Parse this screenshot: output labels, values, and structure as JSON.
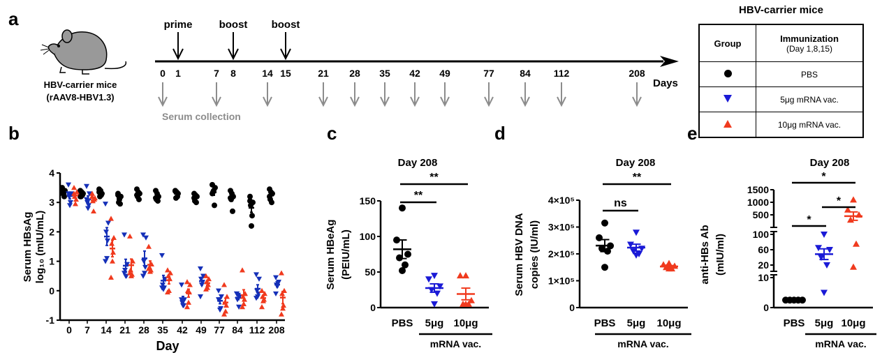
{
  "panel_labels": {
    "a": "a",
    "b": "b",
    "c": "c",
    "d": "d",
    "e": "e"
  },
  "colors": {
    "pbs": "#000000",
    "low": "#1a1ad6",
    "high": "#f03a1e",
    "panel_b_low": "#1530b8",
    "collection_arrow": "#8c8c8c"
  },
  "schedule": {
    "mouse_label": "HBV-carrier mice",
    "mouse_model": "(rAAV8-HBV1.3)",
    "immunizations": [
      {
        "label": "prime",
        "day": 1
      },
      {
        "label": "boost",
        "day": 8
      },
      {
        "label": "boost",
        "day": 15
      }
    ],
    "days": [
      "0",
      "1",
      "7",
      "8",
      "14",
      "15",
      "21",
      "28",
      "35",
      "42",
      "49",
      "77",
      "84",
      "112",
      "208"
    ],
    "collection_days": [
      "0",
      "7",
      "14",
      "21",
      "28",
      "35",
      "42",
      "49",
      "77",
      "84",
      "112",
      "208"
    ],
    "axis_label": "Days",
    "collection_label": "Serum collection"
  },
  "legend": {
    "title": "HBV-carrier mice",
    "col_group": "Group",
    "col_immunization": "Immunization",
    "col_immunization_sub": "(Day 1,8,15)",
    "rows": [
      {
        "marker": "circle",
        "label": "PBS"
      },
      {
        "marker": "triangle-down",
        "label": "5μg mRNA vac."
      },
      {
        "marker": "triangle-up",
        "label": "10μg mRNA vac."
      }
    ]
  },
  "chart_data": [
    {
      "id": "b",
      "type": "scatter",
      "xlabel": "Day",
      "ylabel": [
        "Serum HBsAg",
        "log₁₀ (mIU/mL)"
      ],
      "ylim": [
        -1,
        4
      ],
      "yticks": [
        "-1",
        "0",
        "1",
        "2",
        "3",
        "4"
      ],
      "categories": [
        "0",
        "7",
        "14",
        "21",
        "28",
        "35",
        "42",
        "49",
        "77",
        "84",
        "112",
        "208"
      ],
      "series": [
        {
          "group": "PBS",
          "marker": "circle",
          "values": [
            [
              3.5,
              3.4,
              3.3,
              3.2,
              3.3,
              3.45
            ],
            [
              3.4,
              3.3,
              3.2,
              3.25,
              3.35,
              3.2
            ],
            [
              3.45,
              3.3,
              3.2,
              3.25,
              3.4,
              3.35
            ],
            [
              3.3,
              3.2,
              3.0,
              2.95,
              3.1,
              3.25
            ],
            [
              3.45,
              3.3,
              3.2,
              3.1,
              3.35,
              3.25
            ],
            [
              3.4,
              3.2,
              3.1,
              3.05,
              3.3,
              3.15
            ],
            [
              3.4,
              3.3,
              3.15,
              3.2,
              3.35,
              3.38
            ],
            [
              3.3,
              3.2,
              3.05,
              3.0,
              3.25,
              3.15
            ],
            [
              3.6,
              3.5,
              3.35,
              2.9,
              3.4,
              3.3
            ],
            [
              3.4,
              3.2,
              3.1,
              2.7,
              3.3,
              3.15
            ],
            [
              3.2,
              3.0,
              2.9,
              2.55,
              2.2,
              3.05
            ],
            [
              3.45,
              3.3,
              3.1,
              3.0,
              3.35,
              3.2
            ]
          ]
        },
        {
          "group": "5μg",
          "marker": "triangle-down",
          "values": [
            [
              3.6,
              3.3,
              3.2,
              3.0,
              2.9,
              3.3
            ],
            [
              3.55,
              3.3,
              3.0,
              2.9,
              2.8,
              3.1
            ],
            [
              2.95,
              2.3,
              2.0,
              1.7,
              1.1,
              1.0
            ],
            [
              1.9,
              0.9,
              0.7,
              0.5,
              0.5,
              0.6
            ],
            [
              1.9,
              1.8,
              1.0,
              0.8,
              0.6,
              0.5
            ],
            [
              1.2,
              0.4,
              0.2,
              0.1,
              0.05,
              0.1
            ],
            [
              0.2,
              -0.3,
              -0.4,
              -0.5,
              -0.5,
              -0.3
            ],
            [
              0.75,
              0.5,
              0.4,
              0.3,
              0.2,
              -0.2
            ],
            [
              0.0,
              -0.2,
              -0.3,
              -0.6,
              -0.65,
              -0.3
            ],
            [
              -0.1,
              -0.2,
              -0.3,
              -0.55,
              -0.15,
              -0.1
            ],
            [
              0.55,
              0.4,
              0.0,
              -0.1,
              -0.2,
              -0.25
            ],
            [
              0.45,
              0.3,
              0.2,
              0.25,
              0.15,
              -0.1
            ]
          ]
        },
        {
          "group": "10μg",
          "marker": "triangle-up",
          "values": [
            [
              3.5,
              3.35,
              3.2,
              3.1,
              2.95,
              3.3
            ],
            [
              3.3,
              3.15,
              3.05,
              3.1,
              2.7,
              3.2
            ],
            [
              2.45,
              1.8,
              1.6,
              1.3,
              1.0,
              0.45
            ],
            [
              1.85,
              1.0,
              0.7,
              0.55,
              0.5,
              0.6
            ],
            [
              1.5,
              0.9,
              0.8,
              0.7,
              0.65,
              0.75
            ],
            [
              0.7,
              0.6,
              0.5,
              0.4,
              0.0,
              -0.05
            ],
            [
              0.3,
              0.2,
              0.0,
              -0.05,
              -0.4,
              -0.55
            ],
            [
              0.5,
              0.4,
              0.3,
              0.2,
              0.1,
              0.05
            ],
            [
              0.2,
              -0.2,
              -0.4,
              -0.5,
              -0.7,
              -0.8
            ],
            [
              0.7,
              -0.1,
              -0.2,
              -0.3,
              -0.45,
              -0.55
            ],
            [
              0.0,
              -0.1,
              -0.2,
              -0.3,
              -0.35,
              -0.55
            ],
            [
              0.6,
              0.0,
              -0.1,
              -0.5,
              -0.6,
              -0.8
            ]
          ]
        }
      ]
    },
    {
      "id": "c",
      "type": "scatter",
      "title": "Day 208",
      "ylabel": [
        "Serum HBeAg",
        "(PEIU/mL)"
      ],
      "ylim": [
        0,
        150
      ],
      "yticks": [
        "0",
        "50",
        "100",
        "150"
      ],
      "ytick_values": [
        0,
        50,
        100,
        150
      ],
      "categories": [
        "PBS",
        "5μg",
        "10μg"
      ],
      "group_label": "mRNA vac.",
      "values": [
        [
          140,
          95,
          75,
          70,
          60,
          52
        ],
        [
          45,
          40,
          30,
          25,
          20,
          5
        ],
        [
          45,
          45,
          10,
          5,
          5,
          5
        ]
      ],
      "significance": [
        {
          "from": "PBS",
          "to": "10μg",
          "label": "**"
        },
        {
          "from": "PBS",
          "to": "5μg",
          "label": "**"
        }
      ]
    },
    {
      "id": "d",
      "type": "scatter",
      "title": "Day 208",
      "ylabel": [
        "Serum HBV DNA",
        "copies (IU/ml)"
      ],
      "ylim": [
        0,
        400000
      ],
      "yticks": [
        "0",
        "1×10⁵",
        "2×10⁵",
        "3×10⁵",
        "4×10⁵"
      ],
      "ytick_values": [
        0,
        100000,
        200000,
        300000,
        400000
      ],
      "categories": [
        "PBS",
        "5μg",
        "10μg"
      ],
      "group_label": "mRNA vac.",
      "values": [
        [
          315000,
          260000,
          230000,
          220000,
          210000,
          150000
        ],
        [
          280000,
          235000,
          220000,
          210000,
          200000,
          195000
        ],
        [
          165000,
          160000,
          155000,
          150000,
          145000,
          145000
        ]
      ],
      "significance": [
        {
          "from": "PBS",
          "to": "10μg",
          "label": "**"
        },
        {
          "from": "PBS",
          "to": "5μg",
          "label": "ns"
        }
      ]
    },
    {
      "id": "e",
      "type": "scatter",
      "title": "Day 208",
      "ylabel": [
        "anti-HBs Ab",
        "(mIU/ml)"
      ],
      "ylim": [
        0,
        1500
      ],
      "axis_breaks": [
        [
          10,
          10
        ],
        [
          100,
          100
        ]
      ],
      "yticks": [
        "0",
        "10",
        "20",
        "60",
        "100",
        "500",
        "1000",
        "1500"
      ],
      "ytick_values": [
        0,
        10,
        20,
        60,
        100,
        500,
        1000,
        1500
      ],
      "categories": [
        "PBS",
        "5μg",
        "10μg"
      ],
      "group_label": "mRNA vac.",
      "values": [
        [
          2.5,
          2.5,
          2.5,
          2.5,
          2.5
        ],
        [
          100,
          65,
          60,
          40,
          20,
          5
        ],
        [
          1100,
          700,
          500,
          300,
          75,
          15
        ]
      ],
      "significance": [
        {
          "from": "PBS",
          "to": "10μg",
          "label": "*"
        },
        {
          "from": "5μg",
          "to": "10μg",
          "label": "*"
        },
        {
          "from": "PBS",
          "to": "5μg",
          "label": "*"
        }
      ]
    }
  ]
}
